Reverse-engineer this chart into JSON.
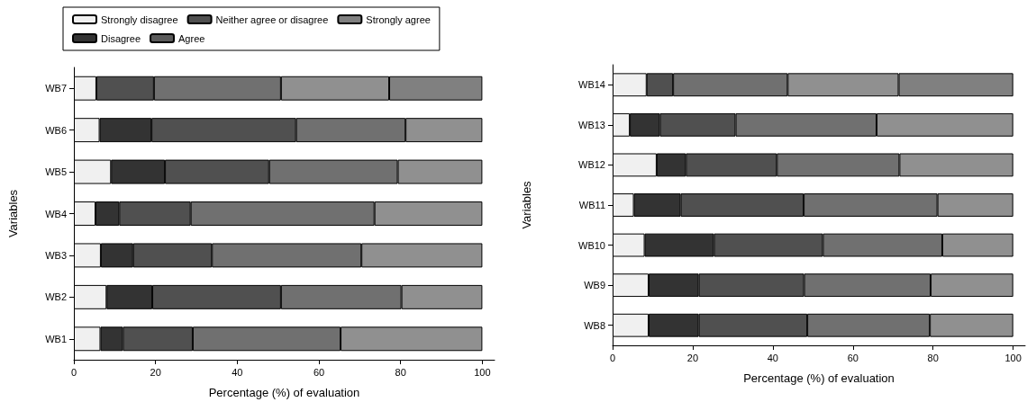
{
  "chart_data": [
    {
      "type": "bar",
      "orientation": "horizontal",
      "stacked": true,
      "xlabel": "Percentage (%) of evaluation",
      "ylabel": "Variables",
      "categories": [
        "WB7",
        "WB6",
        "WB5",
        "WB4",
        "WB3",
        "WB2",
        "WB1"
      ],
      "xlim": [
        0,
        103
      ],
      "xticks": [
        0,
        20,
        40,
        60,
        80,
        100
      ],
      "grid": false,
      "legend": "top",
      "series": [
        {
          "name": "Strongly disagree",
          "color": "#f0f0f0",
          "values": [
            5.5,
            6.3,
            9.1,
            5.3,
            6.6,
            8.0,
            6.5
          ]
        },
        {
          "name": "Disagree",
          "color": "#333333",
          "values": [
            null,
            12.7,
            13.2,
            5.8,
            7.9,
            11.2,
            5.5
          ]
        },
        {
          "name": "Neither agree or disagree",
          "color": "#505050",
          "values": [
            14.1,
            35.4,
            25.5,
            17.5,
            19.3,
            31.5,
            17.1
          ]
        },
        {
          "color": "#707070",
          "values": [
            31.1,
            26.8,
            31.5,
            45.0,
            36.6,
            29.5,
            36.2
          ]
        },
        {
          "color": "#909090",
          "values": [
            26.5,
            18.8,
            20.7,
            26.4,
            29.6,
            19.8,
            34.7
          ]
        },
        {
          "name": "Agree",
          "color": "#5a5a5a",
          "values": [
            null,
            null,
            null,
            null,
            null,
            null,
            null
          ]
        },
        {
          "name": "Strongly agree",
          "color": "#808080",
          "values": [
            22.8,
            null,
            null,
            null,
            null,
            null,
            null
          ]
        }
      ]
    },
    {
      "type": "bar",
      "orientation": "horizontal",
      "stacked": true,
      "xlabel": "Percentage (%) of evaluation",
      "ylabel": "Variables",
      "categories": [
        "WB14",
        "WB13",
        "WB12",
        "WB11",
        "WB10",
        "WB9",
        "WB8"
      ],
      "xlim": [
        0,
        103
      ],
      "xticks": [
        0,
        20,
        40,
        60,
        80,
        100
      ],
      "grid": false,
      "series": [
        {
          "color": "#f0f0f0",
          "values": [
            8.5,
            4.3,
            11.0,
            5.3,
            8.0,
            9.0,
            9.0
          ]
        },
        {
          "color": "#333333",
          "values": [
            null,
            7.5,
            7.3,
            11.7,
            17.3,
            12.5,
            12.5
          ]
        },
        {
          "color": "#505050",
          "values": [
            6.6,
            18.9,
            22.7,
            30.7,
            27.2,
            26.3,
            27.1
          ]
        },
        {
          "color": "#707070",
          "values": [
            28.6,
            35.2,
            30.6,
            33.4,
            29.8,
            31.6,
            30.6
          ]
        },
        {
          "color": "#909090",
          "values": [
            27.7,
            34.1,
            28.4,
            18.9,
            17.7,
            20.6,
            20.8
          ]
        },
        {
          "color": "#808080",
          "values": [
            28.6,
            null,
            null,
            null,
            null,
            null,
            null
          ]
        }
      ]
    }
  ]
}
